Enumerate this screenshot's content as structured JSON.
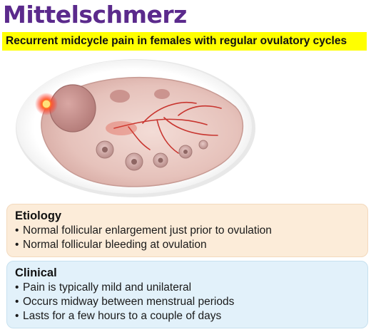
{
  "header": {
    "title": "Mittelschmerz",
    "subtitle": "Recurrent midcycle pain in females with regular ovulatory cycles"
  },
  "illustration": {
    "icon": "ovary-ovulation-illustration",
    "colors": {
      "tissue": "#e9c8c2",
      "follicle": "#c9a09c",
      "blood": "#d12a2a",
      "highlight": "#ff3b1f"
    }
  },
  "sections": {
    "etiology": {
      "heading": "Etiology",
      "items": [
        "Normal follicular enlargement just prior to ovulation",
        "Normal follicular bleeding at ovulation"
      ]
    },
    "clinical": {
      "heading": "Clinical",
      "items": [
        "Pain is typically mild and unilateral",
        "Occurs midway between menstrual periods",
        "Lasts for a few hours to a couple of days"
      ]
    }
  }
}
